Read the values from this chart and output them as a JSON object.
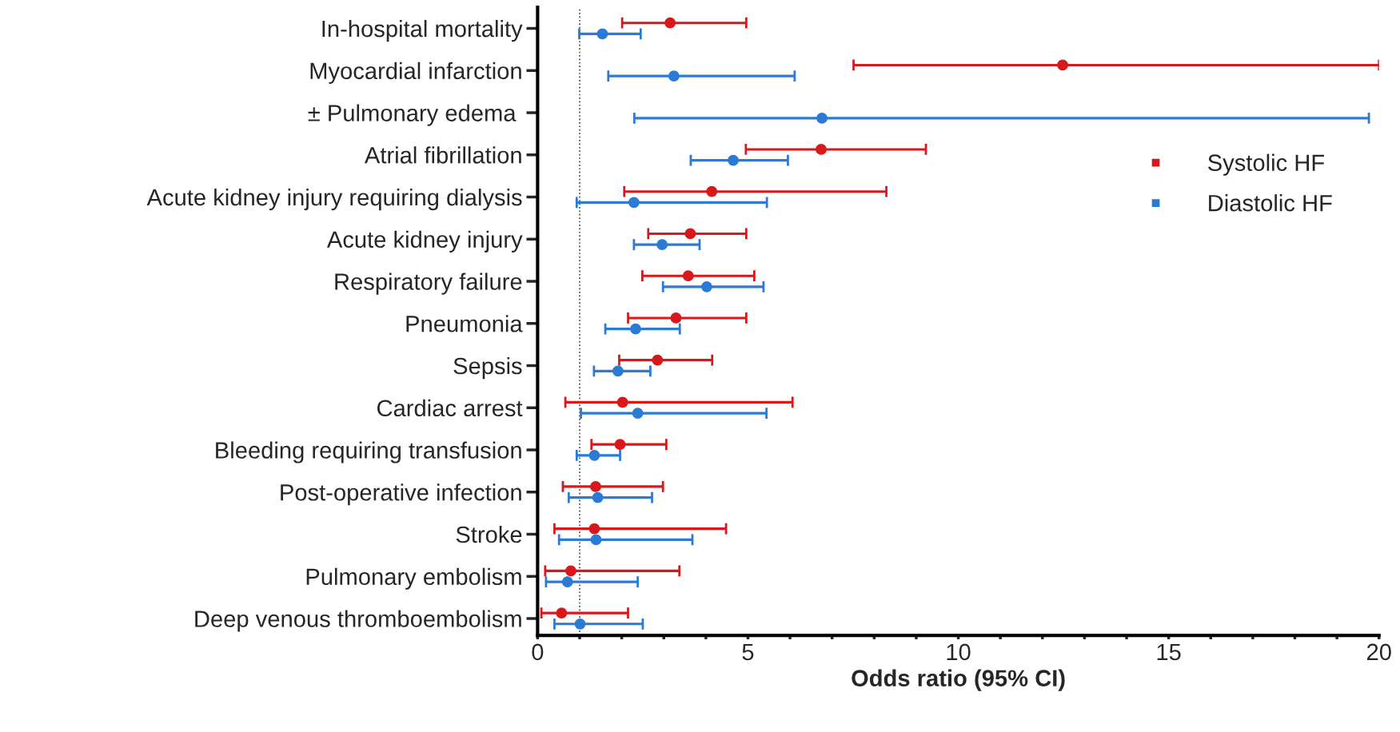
{
  "chart_data": {
    "type": "scatter",
    "orientation": "horizontal",
    "xlabel": "Odds ratio (95% CI)",
    "categories": [
      "In-hospital mortality",
      "Myocardial infarction",
      "± Pulmonary edema ",
      "Atrial fibrillation",
      "Acute kidney injury requiring dialysis",
      "Acute kidney injury",
      "Respiratory failure",
      "Pneumonia",
      "Sepsis",
      "Cardiac arrest",
      "Bleeding requiring transfusion",
      "Post-operative infection",
      "Stroke",
      "Pulmonary embolism",
      "Deep venous thromboembolism"
    ],
    "series": [
      {
        "name": "Systolic HF",
        "color": "#d7191c",
        "values": [
          3.15,
          12.48,
          null,
          6.74,
          4.14,
          3.63,
          3.58,
          3.29,
          2.85,
          2.02,
          1.96,
          1.38,
          1.35,
          0.79,
          0.57
        ],
        "errors": [
          [
            2.01,
            4.96
          ],
          [
            7.51,
            20
          ],
          null,
          [
            4.95,
            9.23
          ],
          [
            2.06,
            8.29
          ],
          [
            2.63,
            4.96
          ],
          [
            2.49,
            5.15
          ],
          [
            2.15,
            4.96
          ],
          [
            1.94,
            4.15
          ],
          [
            0.66,
            6.06
          ],
          [
            1.28,
            3.06
          ],
          [
            0.6,
            2.98
          ],
          [
            0.4,
            4.48
          ],
          [
            0.18,
            3.37
          ],
          [
            0.09,
            2.15
          ]
        ]
      },
      {
        "name": "Diastolic HF",
        "color": "#2b7bd6",
        "values": [
          1.54,
          3.24,
          6.76,
          4.65,
          2.29,
          2.96,
          4.02,
          2.33,
          1.91,
          2.38,
          1.35,
          1.43,
          1.39,
          0.71,
          1.01
        ],
        "errors": [
          [
            0.99,
            2.45
          ],
          [
            1.68,
            6.11
          ],
          [
            2.3,
            19.76
          ],
          [
            3.64,
            5.95
          ],
          [
            0.93,
            5.45
          ],
          [
            2.29,
            3.85
          ],
          [
            2.98,
            5.37
          ],
          [
            1.61,
            3.38
          ],
          [
            1.34,
            2.68
          ],
          [
            1.03,
            5.44
          ],
          [
            0.93,
            1.96
          ],
          [
            0.74,
            2.72
          ],
          [
            0.51,
            3.68
          ],
          [
            0.2,
            2.38
          ],
          [
            0.4,
            2.5
          ]
        ]
      }
    ],
    "xlim": [
      0,
      20
    ],
    "xticks": [
      0,
      {
        "value": 1,
        "label": null
      },
      {
        "value": 2,
        "label": null
      },
      {
        "value": 3,
        "label": null
      },
      {
        "value": 4,
        "label": null
      },
      5,
      {
        "value": 6,
        "label": null
      },
      {
        "value": 7,
        "label": null
      },
      {
        "value": 8,
        "label": null
      },
      {
        "value": 9,
        "label": null
      },
      10,
      {
        "value": 11,
        "label": null
      },
      {
        "value": 12,
        "label": null
      },
      {
        "value": 13,
        "label": null
      },
      {
        "value": 14,
        "label": null
      },
      15,
      {
        "value": 16,
        "label": null
      },
      {
        "value": 17,
        "label": null
      },
      {
        "value": 18,
        "label": null
      },
      {
        "value": 19,
        "label": null
      },
      20
    ],
    "ref_lines": [
      {
        "axis": "x",
        "value": 1,
        "color": "#444444",
        "line_style": "dotted"
      }
    ],
    "marker": "circle",
    "legend": "top right",
    "grid": false
  }
}
